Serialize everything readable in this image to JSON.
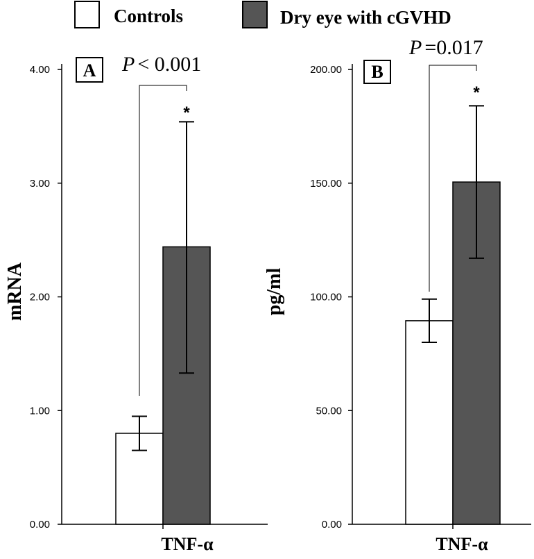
{
  "legend": {
    "items": [
      {
        "label": "Controls",
        "color": "#ffffff"
      },
      {
        "label": "Dry eye with cGVHD",
        "color": "#555555"
      }
    ]
  },
  "chart_data": [
    {
      "type": "bar",
      "panel_label": "A",
      "ylabel": "mRNA",
      "categories": [
        "TNF-α"
      ],
      "ylim": [
        0,
        4
      ],
      "yticks": [
        "0.00",
        "1.00",
        "2.00",
        "3.00",
        "4.00"
      ],
      "series": [
        {
          "name": "Controls",
          "values": [
            0.8
          ],
          "error_low": [
            0.65
          ],
          "error_high": [
            0.95
          ],
          "color": "#ffffff"
        },
        {
          "name": "Dry eye with cGVHD",
          "values": [
            2.44
          ],
          "error_low": [
            1.33
          ],
          "error_high": [
            3.54
          ],
          "color": "#555555"
        }
      ],
      "annotation": {
        "p_symbol": "P",
        "p_rest": "< 0.001",
        "marker": "*"
      }
    },
    {
      "type": "bar",
      "panel_label": "B",
      "ylabel": "pg/ml",
      "categories": [
        "TNF-α"
      ],
      "ylim": [
        0,
        200
      ],
      "yticks": [
        "0.00",
        "50.00",
        "100.00",
        "150.00",
        "200.00"
      ],
      "series": [
        {
          "name": "Controls",
          "values": [
            89.5
          ],
          "error_low": [
            80
          ],
          "error_high": [
            99
          ],
          "color": "#ffffff"
        },
        {
          "name": "Dry eye with cGVHD",
          "values": [
            150.5
          ],
          "error_low": [
            117
          ],
          "error_high": [
            184
          ],
          "color": "#555555"
        }
      ],
      "annotation": {
        "p_symbol": "P",
        "p_rest": "=0.017",
        "marker": "*"
      }
    }
  ]
}
